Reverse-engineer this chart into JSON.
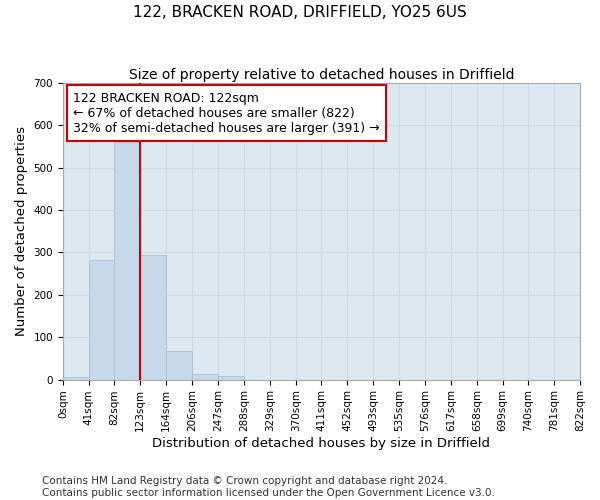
{
  "title": "122, BRACKEN ROAD, DRIFFIELD, YO25 6US",
  "subtitle": "Size of property relative to detached houses in Driffield",
  "xlabel": "Distribution of detached houses by size in Driffield",
  "ylabel": "Number of detached properties",
  "footer_line1": "Contains HM Land Registry data © Crown copyright and database right 2024.",
  "footer_line2": "Contains public sector information licensed under the Open Government Licence v3.0.",
  "bar_edges": [
    0,
    41,
    82,
    123,
    164,
    206,
    247,
    288,
    329,
    370,
    411,
    452,
    493,
    535,
    576,
    617,
    658,
    699,
    740,
    781,
    822
  ],
  "bar_heights": [
    7,
    282,
    560,
    293,
    67,
    14,
    9,
    0,
    0,
    0,
    0,
    0,
    0,
    0,
    0,
    0,
    0,
    0,
    0,
    0
  ],
  "bar_color": "#c8d8eb",
  "bar_edgecolor": "#aabfcf",
  "property_line_x": 123,
  "property_line_color": "#cc0000",
  "annotation_text": "122 BRACKEN ROAD: 122sqm\n← 67% of detached houses are smaller (822)\n32% of semi-detached houses are larger (391) →",
  "annotation_box_color": "#ffffff",
  "annotation_box_edgecolor": "#cc0000",
  "ylim": [
    0,
    700
  ],
  "yticks": [
    0,
    100,
    200,
    300,
    400,
    500,
    600,
    700
  ],
  "tick_labels": [
    "0sqm",
    "41sqm",
    "82sqm",
    "123sqm",
    "164sqm",
    "206sqm",
    "247sqm",
    "288sqm",
    "329sqm",
    "370sqm",
    "411sqm",
    "452sqm",
    "493sqm",
    "535sqm",
    "576sqm",
    "617sqm",
    "658sqm",
    "699sqm",
    "740sqm",
    "781sqm",
    "822sqm"
  ],
  "grid_color": "#d0d8e4",
  "bg_color": "#dde8f0",
  "title_fontsize": 11,
  "subtitle_fontsize": 10,
  "axis_label_fontsize": 9.5,
  "tick_fontsize": 7.5,
  "annotation_fontsize": 9,
  "footer_fontsize": 7.5
}
